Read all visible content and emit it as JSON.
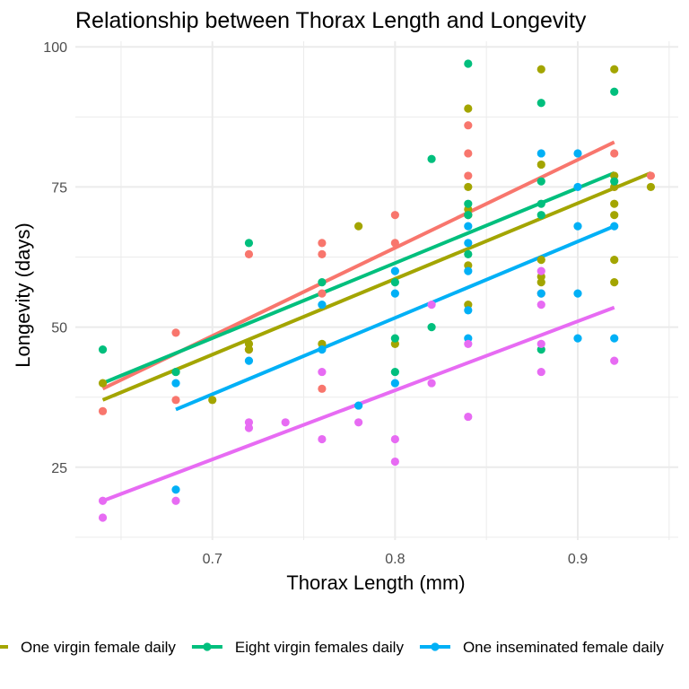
{
  "chart_data": {
    "type": "scatter",
    "title": "Relationship between Thorax Length and Longevity",
    "xlabel": "Thorax Length (mm)",
    "ylabel": "Longevity (days)",
    "xlim": [
      0.625,
      0.955
    ],
    "ylim": [
      12,
      101
    ],
    "x_ticks": [
      0.7,
      0.8,
      0.9
    ],
    "x_tick_labels": [
      "0.7",
      "0.8",
      "0.9"
    ],
    "y_ticks": [
      25,
      50,
      75,
      100
    ],
    "y_tick_labels": [
      "25",
      "50",
      "75",
      "100"
    ],
    "grid": true,
    "legend_position": "bottom",
    "series": [
      {
        "name": "",
        "color": "#F8766D",
        "points": [
          [
            0.64,
            35
          ],
          [
            0.68,
            49
          ],
          [
            0.68,
            37
          ],
          [
            0.72,
            63
          ],
          [
            0.72,
            46
          ],
          [
            0.76,
            65
          ],
          [
            0.76,
            63
          ],
          [
            0.76,
            56
          ],
          [
            0.76,
            39
          ],
          [
            0.8,
            70
          ],
          [
            0.8,
            65
          ],
          [
            0.84,
            86
          ],
          [
            0.84,
            81
          ],
          [
            0.84,
            77
          ],
          [
            0.84,
            70
          ],
          [
            0.88,
            56
          ],
          [
            0.92,
            81
          ],
          [
            0.92,
            75
          ],
          [
            0.94,
            77
          ]
        ],
        "fit": [
          [
            0.64,
            39
          ],
          [
            0.92,
            83
          ]
        ]
      },
      {
        "name": "One virgin female daily",
        "color": "#A3A500",
        "points": [
          [
            0.64,
            40
          ],
          [
            0.68,
            42
          ],
          [
            0.7,
            37
          ],
          [
            0.72,
            47
          ],
          [
            0.72,
            46
          ],
          [
            0.76,
            47
          ],
          [
            0.78,
            68
          ],
          [
            0.8,
            47
          ],
          [
            0.84,
            89
          ],
          [
            0.84,
            75
          ],
          [
            0.84,
            71
          ],
          [
            0.84,
            70
          ],
          [
            0.84,
            61
          ],
          [
            0.84,
            54
          ],
          [
            0.88,
            96
          ],
          [
            0.88,
            79
          ],
          [
            0.88,
            62
          ],
          [
            0.88,
            59
          ],
          [
            0.88,
            58
          ],
          [
            0.92,
            96
          ],
          [
            0.92,
            77
          ],
          [
            0.92,
            75
          ],
          [
            0.92,
            72
          ],
          [
            0.92,
            70
          ],
          [
            0.92,
            62
          ],
          [
            0.92,
            58
          ],
          [
            0.94,
            75
          ]
        ],
        "fit": [
          [
            0.64,
            37
          ],
          [
            0.94,
            77.5
          ]
        ]
      },
      {
        "name": "Eight virgin females daily",
        "color": "#00BF7D",
        "points": [
          [
            0.64,
            46
          ],
          [
            0.68,
            42
          ],
          [
            0.72,
            65
          ],
          [
            0.76,
            58
          ],
          [
            0.8,
            58
          ],
          [
            0.8,
            48
          ],
          [
            0.8,
            42
          ],
          [
            0.82,
            80
          ],
          [
            0.82,
            50
          ],
          [
            0.84,
            97
          ],
          [
            0.84,
            72
          ],
          [
            0.84,
            70
          ],
          [
            0.84,
            63
          ],
          [
            0.88,
            90
          ],
          [
            0.88,
            76
          ],
          [
            0.88,
            72
          ],
          [
            0.88,
            70
          ],
          [
            0.88,
            46
          ],
          [
            0.92,
            92
          ],
          [
            0.92,
            76
          ]
        ],
        "fit": [
          [
            0.64,
            40
          ],
          [
            0.92,
            77.5
          ]
        ]
      },
      {
        "name": "One inseminated female daily",
        "color": "#00B0F6",
        "points": [
          [
            0.68,
            40
          ],
          [
            0.68,
            21
          ],
          [
            0.72,
            44
          ],
          [
            0.76,
            54
          ],
          [
            0.76,
            46
          ],
          [
            0.78,
            36
          ],
          [
            0.8,
            60
          ],
          [
            0.8,
            56
          ],
          [
            0.8,
            40
          ],
          [
            0.84,
            68
          ],
          [
            0.84,
            65
          ],
          [
            0.84,
            60
          ],
          [
            0.84,
            53
          ],
          [
            0.84,
            48
          ],
          [
            0.88,
            81
          ],
          [
            0.88,
            56
          ],
          [
            0.9,
            81
          ],
          [
            0.9,
            75
          ],
          [
            0.9,
            68
          ],
          [
            0.9,
            56
          ],
          [
            0.9,
            48
          ],
          [
            0.92,
            68
          ],
          [
            0.92,
            48
          ]
        ],
        "fit": [
          [
            0.68,
            35.3
          ],
          [
            0.92,
            68
          ]
        ]
      },
      {
        "name": "",
        "color": "#E76BF3",
        "points": [
          [
            0.64,
            19
          ],
          [
            0.64,
            16
          ],
          [
            0.68,
            19
          ],
          [
            0.72,
            33
          ],
          [
            0.72,
            32
          ],
          [
            0.74,
            33
          ],
          [
            0.76,
            42
          ],
          [
            0.76,
            30
          ],
          [
            0.78,
            33
          ],
          [
            0.8,
            30
          ],
          [
            0.8,
            26
          ],
          [
            0.82,
            54
          ],
          [
            0.82,
            40
          ],
          [
            0.84,
            47
          ],
          [
            0.84,
            34
          ],
          [
            0.88,
            60
          ],
          [
            0.88,
            54
          ],
          [
            0.88,
            47
          ],
          [
            0.88,
            42
          ],
          [
            0.92,
            44
          ]
        ],
        "fit": [
          [
            0.64,
            19
          ],
          [
            0.92,
            53.5
          ]
        ]
      }
    ]
  }
}
